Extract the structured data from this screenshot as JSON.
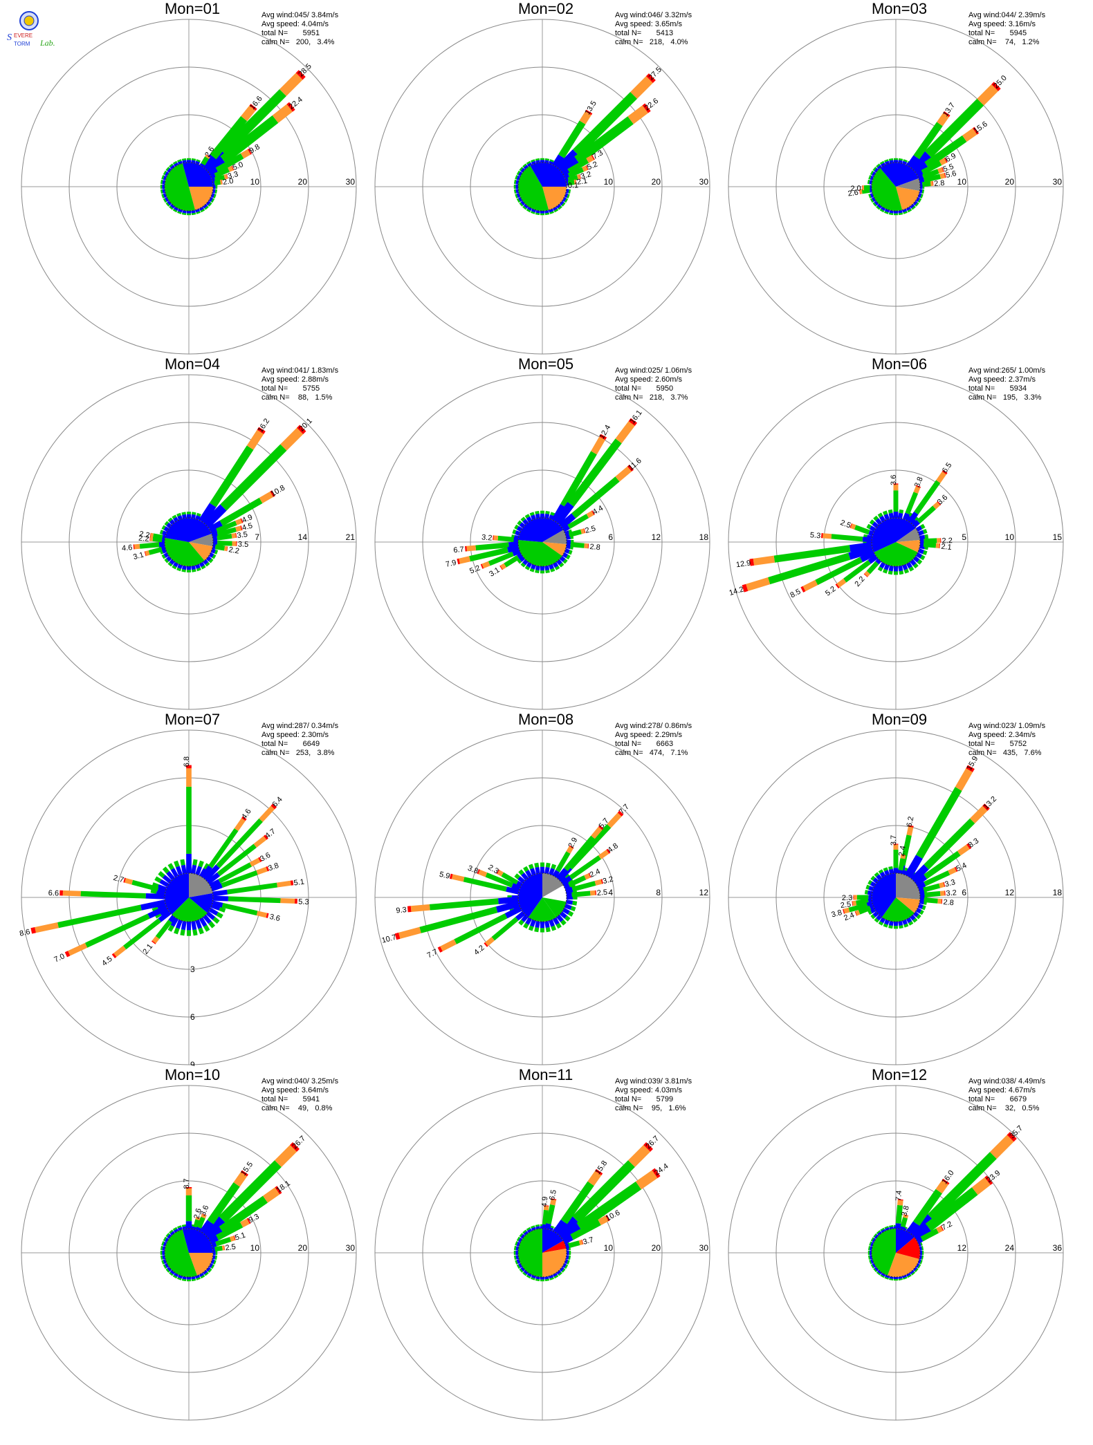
{
  "logo": {
    "text_top": "Severe",
    "text_mid": "Storm",
    "text_lab": "Lab.",
    "colors": {
      "s": "#1e3fd6",
      "t": "#cc1a1a",
      "lab": "#2aa61a"
    }
  },
  "legend_colors": {
    "blue": "#0000ff",
    "green": "#00cc00",
    "orange": "#ff9933",
    "red": "#ff0000",
    "gray": "#888888",
    "white": "#ffffff"
  },
  "chart_data": [
    {
      "type": "wind-rose",
      "title": "Mon=01",
      "stats": {
        "avg_wind": "Avg wind:045/ 3.84m/s",
        "avg_speed": "Avg speed: 4.04m/s",
        "total": "total N=       5951",
        "calm": "calm N=   200,   3.4%"
      },
      "rings": [
        10,
        20,
        30
      ],
      "ring_labels": [
        "10",
        "20",
        "30"
      ],
      "rmax": 30,
      "labels": [
        {
          "dir": 45,
          "value": 28.5
        },
        {
          "dir": 39,
          "value": 16.6
        },
        {
          "dir": 52,
          "value": 22.4
        },
        {
          "dir": 32,
          "value": 2.6
        },
        {
          "dir": 60,
          "value": 9.8
        },
        {
          "dir": 67,
          "value": 5.0
        },
        {
          "dir": 75,
          "value": 3.3
        },
        {
          "dir": 82,
          "value": 2.0
        }
      ],
      "hub": [
        {
          "from": 0,
          "to": 90,
          "color": "blue"
        },
        {
          "from": 90,
          "to": 165,
          "color": "orange"
        },
        {
          "from": 165,
          "to": 345,
          "color": "green"
        },
        {
          "from": 345,
          "to": 360,
          "color": "blue"
        }
      ]
    },
    {
      "type": "wind-rose",
      "title": "Mon=02",
      "stats": {
        "avg_wind": "Avg wind:046/ 3.32m/s",
        "avg_speed": "Avg speed: 3.65m/s",
        "total": "total N=       5413",
        "calm": "calm N=   218,   4.0%"
      },
      "rings": [
        10,
        20,
        30
      ],
      "ring_labels": [
        "10",
        "20",
        "30"
      ],
      "rmax": 30,
      "labels": [
        {
          "dir": 45,
          "value": 27.5
        },
        {
          "dir": 32,
          "value": 13.5
        },
        {
          "dir": 53,
          "value": 22.6
        },
        {
          "dir": 60,
          "value": 7.3
        },
        {
          "dir": 67,
          "value": 5.2
        },
        {
          "dir": 75,
          "value": 3.2
        },
        {
          "dir": 82,
          "value": 2.1
        },
        {
          "dir": 87,
          "value": 0.1
        }
      ],
      "hub": [
        {
          "from": 0,
          "to": 90,
          "color": "blue"
        },
        {
          "from": 90,
          "to": 165,
          "color": "orange"
        },
        {
          "from": 165,
          "to": 330,
          "color": "green"
        },
        {
          "from": 330,
          "to": 360,
          "color": "blue"
        }
      ]
    },
    {
      "type": "wind-rose",
      "title": "Mon=03",
      "stats": {
        "avg_wind": "Avg wind:044/ 2.39m/s",
        "avg_speed": "Avg speed: 3.16m/s",
        "total": "total N=       5945",
        "calm": "calm N=    74,   1.2%"
      },
      "rings": [
        10,
        20,
        30
      ],
      "ring_labels": [
        "10",
        "20",
        "30"
      ],
      "rmax": 30,
      "labels": [
        {
          "dir": 45,
          "value": 25.0
        },
        {
          "dir": 35,
          "value": 13.7
        },
        {
          "dir": 55,
          "value": 15.6
        },
        {
          "dir": 62,
          "value": 6.9
        },
        {
          "dir": 70,
          "value": 5.5
        },
        {
          "dir": 77,
          "value": 5.6
        },
        {
          "dir": 85,
          "value": 2.8
        },
        {
          "dir": 262,
          "value": 2.6
        },
        {
          "dir": 268,
          "value": 2.0
        }
      ],
      "hub": [
        {
          "from": 0,
          "to": 70,
          "color": "blue"
        },
        {
          "from": 70,
          "to": 100,
          "color": "gray"
        },
        {
          "from": 100,
          "to": 165,
          "color": "orange"
        },
        {
          "from": 165,
          "to": 320,
          "color": "green"
        },
        {
          "from": 320,
          "to": 360,
          "color": "blue"
        }
      ]
    },
    {
      "type": "wind-rose",
      "title": "Mon=04",
      "stats": {
        "avg_wind": "Avg wind:041/ 1.83m/s",
        "avg_speed": "Avg speed: 2.88m/s",
        "total": "total N=       5755",
        "calm": "calm N=    88,   1.5%"
      },
      "rings": [
        7,
        14,
        21
      ],
      "ring_labels": [
        "7",
        "14",
        "21"
      ],
      "rmax": 21,
      "labels": [
        {
          "dir": 33,
          "value": 16.2
        },
        {
          "dir": 45,
          "value": 20.1
        },
        {
          "dir": 60,
          "value": 10.8
        },
        {
          "dir": 68,
          "value": 4.9
        },
        {
          "dir": 75,
          "value": 4.5
        },
        {
          "dir": 82,
          "value": 3.5
        },
        {
          "dir": 92,
          "value": 3.5
        },
        {
          "dir": 100,
          "value": 2.2
        },
        {
          "dir": 265,
          "value": 4.6
        },
        {
          "dir": 275,
          "value": 2.2
        },
        {
          "dir": 280,
          "value": 2.2
        },
        {
          "dir": 255,
          "value": 3.1
        }
      ],
      "hub": [
        {
          "from": 0,
          "to": 70,
          "color": "blue"
        },
        {
          "from": 70,
          "to": 100,
          "color": "gray"
        },
        {
          "from": 100,
          "to": 140,
          "color": "orange"
        },
        {
          "from": 140,
          "to": 280,
          "color": "green"
        },
        {
          "from": 280,
          "to": 360,
          "color": "blue"
        }
      ]
    },
    {
      "type": "wind-rose",
      "title": "Mon=05",
      "stats": {
        "avg_wind": "Avg wind:025/ 1.06m/s",
        "avg_speed": "Avg speed: 2.60m/s",
        "total": "total N=       5950",
        "calm": "calm N=   218,   3.7%"
      },
      "rings": [
        6,
        12,
        18
      ],
      "ring_labels": [
        "6",
        "12",
        "18"
      ],
      "rmax": 18,
      "labels": [
        {
          "dir": 30,
          "value": 12.4
        },
        {
          "dir": 37,
          "value": 16.1
        },
        {
          "dir": 50,
          "value": 11.6
        },
        {
          "dir": 60,
          "value": 4.4
        },
        {
          "dir": 75,
          "value": 2.5
        },
        {
          "dir": 95,
          "value": 2.8
        },
        {
          "dir": 275,
          "value": 3.2
        },
        {
          "dir": 265,
          "value": 6.7
        },
        {
          "dir": 257,
          "value": 7.9
        },
        {
          "dir": 248,
          "value": 5.2
        },
        {
          "dir": 238,
          "value": 3.1
        }
      ],
      "hub": [
        {
          "from": 0,
          "to": 60,
          "color": "blue"
        },
        {
          "from": 60,
          "to": 95,
          "color": "gray"
        },
        {
          "from": 95,
          "to": 125,
          "color": "orange"
        },
        {
          "from": 125,
          "to": 275,
          "color": "green"
        },
        {
          "from": 275,
          "to": 360,
          "color": "blue"
        }
      ]
    },
    {
      "type": "wind-rose",
      "title": "Mon=06",
      "stats": {
        "avg_wind": "Avg wind:265/ 1.00m/s",
        "avg_speed": "Avg speed: 2.37m/s",
        "total": "total N=       5934",
        "calm": "calm N=   195,   3.3%"
      },
      "rings": [
        5,
        10,
        15
      ],
      "ring_labels": [
        "5",
        "10",
        "15"
      ],
      "rmax": 15,
      "labels": [
        {
          "dir": 0,
          "value": 3.6
        },
        {
          "dir": 35,
          "value": 6.5
        },
        {
          "dir": 22,
          "value": 3.8
        },
        {
          "dir": 48,
          "value": 3.6
        },
        {
          "dir": 275,
          "value": 5.3
        },
        {
          "dir": 290,
          "value": 2.5
        },
        {
          "dir": 262,
          "value": 12.9
        },
        {
          "dir": 253,
          "value": 14.2
        },
        {
          "dir": 243,
          "value": 8.5
        },
        {
          "dir": 233,
          "value": 5.2
        },
        {
          "dir": 222,
          "value": 2.2
        },
        {
          "dir": 88,
          "value": 2.2
        },
        {
          "dir": 95,
          "value": 2.1
        }
      ],
      "hub": [
        {
          "from": 0,
          "to": 55,
          "color": "blue"
        },
        {
          "from": 55,
          "to": 85,
          "color": "gray"
        },
        {
          "from": 85,
          "to": 115,
          "color": "orange"
        },
        {
          "from": 115,
          "to": 245,
          "color": "green"
        },
        {
          "from": 245,
          "to": 360,
          "color": "blue"
        }
      ]
    },
    {
      "type": "wind-rose",
      "title": "Mon=07",
      "stats": {
        "avg_wind": "Avg wind:287/ 0.34m/s",
        "avg_speed": "Avg speed: 2.30m/s",
        "total": "total N=       6649",
        "calm": "calm N=   253,   3.8%"
      },
      "rings": [
        3,
        6,
        9
      ],
      "ring_labels": [
        "3",
        "6",
        "9"
      ],
      "rmax": 9,
      "ring_labels_south": true,
      "labels": [
        {
          "dir": 0,
          "value": 6.8
        },
        {
          "dir": 35,
          "value": 4.6
        },
        {
          "dir": 43,
          "value": 6.4
        },
        {
          "dir": 52,
          "value": 4.7
        },
        {
          "dir": 62,
          "value": 3.6
        },
        {
          "dir": 70,
          "value": 3.8
        },
        {
          "dir": 82,
          "value": 5.1
        },
        {
          "dir": 92,
          "value": 5.3
        },
        {
          "dir": 103,
          "value": 3.6
        },
        {
          "dir": 285,
          "value": 2.7
        },
        {
          "dir": 272,
          "value": 6.6
        },
        {
          "dir": 258,
          "value": 8.6
        },
        {
          "dir": 245,
          "value": 7.0
        },
        {
          "dir": 232,
          "value": 4.5
        },
        {
          "dir": 218,
          "value": 2.1
        }
      ],
      "hub": [
        {
          "from": 0,
          "to": 80,
          "color": "gray"
        },
        {
          "from": 80,
          "to": 130,
          "color": "blue"
        },
        {
          "from": 130,
          "to": 225,
          "color": "green"
        },
        {
          "from": 225,
          "to": 360,
          "color": "blue"
        }
      ]
    },
    {
      "type": "wind-rose",
      "title": "Mon=08",
      "stats": {
        "avg_wind": "Avg wind:278/ 0.86m/s",
        "avg_speed": "Avg speed: 2.29m/s",
        "total": "total N=       6663",
        "calm": "calm N=   474,   7.1%"
      },
      "rings": [
        4,
        8,
        12
      ],
      "ring_labels": [
        "4",
        "8",
        "12"
      ],
      "rmax": 12,
      "labels": [
        {
          "dir": 30,
          "value": 2.9
        },
        {
          "dir": 43,
          "value": 7.7
        },
        {
          "dir": 40,
          "value": 5.7
        },
        {
          "dir": 55,
          "value": 4.8
        },
        {
          "dir": 65,
          "value": 2.4
        },
        {
          "dir": 75,
          "value": 3.2
        },
        {
          "dir": 85,
          "value": 2.5
        },
        {
          "dir": 300,
          "value": 2.3
        },
        {
          "dir": 292,
          "value": 3.8
        },
        {
          "dir": 283,
          "value": 5.9
        },
        {
          "dir": 265,
          "value": 9.3
        },
        {
          "dir": 255,
          "value": 10.7
        },
        {
          "dir": 243,
          "value": 7.7
        },
        {
          "dir": 230,
          "value": 4.2
        }
      ],
      "hub": [
        {
          "from": 0,
          "to": 60,
          "color": "gray"
        },
        {
          "from": 60,
          "to": 100,
          "color": "white"
        },
        {
          "from": 100,
          "to": 145,
          "color": "green"
        },
        {
          "from": 145,
          "to": 215,
          "color": "green"
        },
        {
          "from": 215,
          "to": 360,
          "color": "blue"
        }
      ]
    },
    {
      "type": "wind-rose",
      "title": "Mon=09",
      "stats": {
        "avg_wind": "Avg wind:023/ 1.09m/s",
        "avg_speed": "Avg speed: 2.34m/s",
        "total": "total N=       5752",
        "calm": "calm N=   435,   7.6%"
      },
      "rings": [
        6,
        12,
        18
      ],
      "ring_labels": [
        "6",
        "12",
        "18"
      ],
      "rmax": 18,
      "labels": [
        {
          "dir": 30,
          "value": 15.9
        },
        {
          "dir": 45,
          "value": 13.2
        },
        {
          "dir": 12,
          "value": 6.2
        },
        {
          "dir": 55,
          "value": 8.3
        },
        {
          "dir": 65,
          "value": 5.4
        },
        {
          "dir": 75,
          "value": 3.3
        },
        {
          "dir": 85,
          "value": 3.2
        },
        {
          "dir": 95,
          "value": 2.8
        },
        {
          "dir": 0,
          "value": 3.7
        },
        {
          "dir": 10,
          "value": 2.4
        },
        {
          "dir": 270,
          "value": 2.3
        },
        {
          "dir": 262,
          "value": 2.5
        },
        {
          "dir": 255,
          "value": 3.8
        },
        {
          "dir": 248,
          "value": 2.4
        }
      ],
      "hub": [
        {
          "from": 0,
          "to": 95,
          "color": "gray"
        },
        {
          "from": 95,
          "to": 130,
          "color": "orange"
        },
        {
          "from": 130,
          "to": 215,
          "color": "green"
        },
        {
          "from": 215,
          "to": 360,
          "color": "blue"
        }
      ]
    },
    {
      "type": "wind-rose",
      "title": "Mon=10",
      "stats": {
        "avg_wind": "Avg wind:040/ 3.25m/s",
        "avg_speed": "Avg speed: 3.64m/s",
        "total": "total N=       5941",
        "calm": "calm N=    49,   0.8%"
      },
      "rings": [
        10,
        20,
        30
      ],
      "ring_labels": [
        "10",
        "20",
        "30"
      ],
      "rmax": 30,
      "labels": [
        {
          "dir": 0,
          "value": 8.7
        },
        {
          "dir": 45,
          "value": 26.7
        },
        {
          "dir": 35,
          "value": 15.5
        },
        {
          "dir": 55,
          "value": 18.1
        },
        {
          "dir": 62,
          "value": 9.3
        },
        {
          "dir": 72,
          "value": 5.1
        },
        {
          "dir": 82,
          "value": 2.5
        },
        {
          "dir": 15,
          "value": 2.6
        },
        {
          "dir": 22,
          "value": 3.6
        }
      ],
      "hub": [
        {
          "from": 0,
          "to": 90,
          "color": "blue"
        },
        {
          "from": 90,
          "to": 160,
          "color": "orange"
        },
        {
          "from": 160,
          "to": 345,
          "color": "green"
        },
        {
          "from": 345,
          "to": 360,
          "color": "blue"
        }
      ]
    },
    {
      "type": "wind-rose",
      "title": "Mon=11",
      "stats": {
        "avg_wind": "Avg wind:039/ 3.81m/s",
        "avg_speed": "Avg speed: 4.03m/s",
        "total": "total N=       5799",
        "calm": "calm N=    95,   1.6%"
      },
      "rings": [
        10,
        20,
        30
      ],
      "ring_labels": [
        "10",
        "20",
        "30"
      ],
      "rmax": 30,
      "labels": [
        {
          "dir": 45,
          "value": 26.7
        },
        {
          "dir": 35,
          "value": 15.8
        },
        {
          "dir": 55,
          "value": 24.4
        },
        {
          "dir": 62,
          "value": 10.6
        },
        {
          "dir": 75,
          "value": 3.7
        },
        {
          "dir": 5,
          "value": 4.9
        },
        {
          "dir": 12,
          "value": 6.5
        }
      ],
      "hub": [
        {
          "from": 0,
          "to": 60,
          "color": "blue"
        },
        {
          "from": 60,
          "to": 80,
          "color": "red"
        },
        {
          "from": 80,
          "to": 180,
          "color": "orange"
        },
        {
          "from": 180,
          "to": 360,
          "color": "green"
        }
      ]
    },
    {
      "type": "wind-rose",
      "title": "Mon=12",
      "stats": {
        "avg_wind": "Avg wind:038/ 4.49m/s",
        "avg_speed": "Avg speed: 4.67m/s",
        "total": "total N=       6679",
        "calm": "calm N=    32,   0.5%"
      },
      "rings": [
        12,
        24,
        36
      ],
      "ring_labels": [
        "12",
        "24",
        "36"
      ],
      "rmax": 36,
      "labels": [
        {
          "dir": 45,
          "value": 35.7
        },
        {
          "dir": 35,
          "value": 16.0
        },
        {
          "dir": 52,
          "value": 23.9
        },
        {
          "dir": 62,
          "value": 7.2
        },
        {
          "dir": 5,
          "value": 7.4
        },
        {
          "dir": 15,
          "value": 3.8
        }
      ],
      "hub": [
        {
          "from": 0,
          "to": 50,
          "color": "blue"
        },
        {
          "from": 50,
          "to": 105,
          "color": "red"
        },
        {
          "from": 105,
          "to": 200,
          "color": "orange"
        },
        {
          "from": 200,
          "to": 360,
          "color": "green"
        }
      ]
    }
  ]
}
